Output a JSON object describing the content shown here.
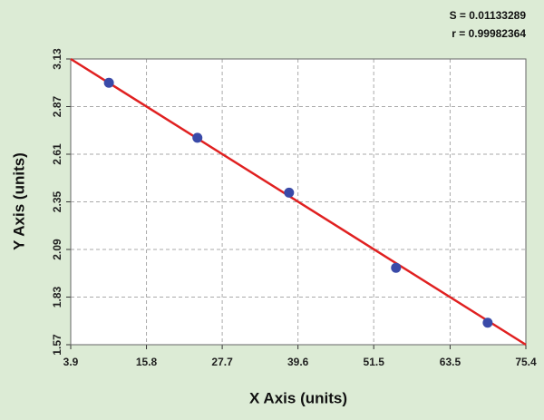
{
  "chart_data": {
    "type": "scatter",
    "x_label": "X Axis (units)",
    "y_label": "Y Axis (units)",
    "annotations": [
      "S = 0.01133289",
      "r = 0.99982364"
    ],
    "series": [
      {
        "color": "#3a4aa8",
        "x": [
          9.9,
          23.8,
          38.2,
          55.0,
          69.4
        ],
        "values": [
          3.0,
          2.7,
          2.4,
          1.99,
          1.69
        ]
      }
    ],
    "fit": {
      "color": "#e02020",
      "x": [
        3.9,
        75.4
      ],
      "values": [
        3.13,
        1.57
      ]
    },
    "xlim": [
      3.9,
      75.4
    ],
    "xticks": [
      3.9,
      15.8,
      27.7,
      39.6,
      51.5,
      63.5,
      75.4
    ],
    "ylim": [
      1.57,
      3.13
    ],
    "yticks": [
      1.57,
      1.83,
      2.09,
      2.35,
      2.61,
      2.87,
      3.13
    ],
    "grid": true
  }
}
